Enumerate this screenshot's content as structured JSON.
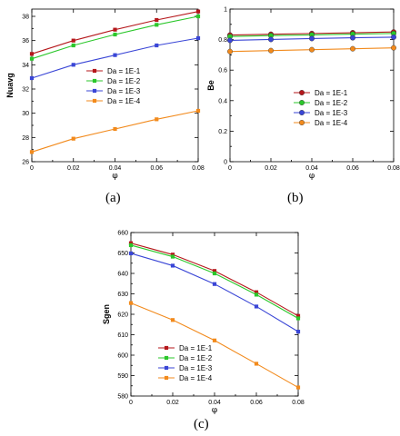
{
  "captions": {
    "a": "(a)",
    "b": "(b)",
    "c": "(c)"
  },
  "chart_data": [
    {
      "id": "a",
      "type": "line",
      "xlabel": "φ",
      "ylabel": "Nuavg",
      "xlim": [
        0,
        0.08
      ],
      "ylim": [
        26,
        38.6
      ],
      "xticks": [
        "0",
        "0.02",
        "0.04",
        "0.06",
        "0.08"
      ],
      "yticks": [
        26,
        28,
        30,
        32,
        34,
        36,
        38
      ],
      "marker": "square",
      "legend_position": "middle-right",
      "grid": false,
      "x": [
        0,
        0.02,
        0.04,
        0.06,
        0.08
      ],
      "series": [
        {
          "name": "Da = 1E-1",
          "color": "#b5171b",
          "values": [
            34.9,
            36.0,
            36.9,
            37.7,
            38.4
          ]
        },
        {
          "name": "Da = 1E-2",
          "color": "#2bc72b",
          "values": [
            34.5,
            35.6,
            36.5,
            37.3,
            38.0
          ]
        },
        {
          "name": "Da = 1E-3",
          "color": "#3a46d6",
          "values": [
            32.9,
            34.0,
            34.8,
            35.6,
            36.2
          ]
        },
        {
          "name": "Da = 1E-4",
          "color": "#f28a1c",
          "values": [
            26.8,
            27.9,
            28.7,
            29.5,
            30.2
          ]
        }
      ]
    },
    {
      "id": "b",
      "type": "line",
      "xlabel": "φ",
      "ylabel": "Be",
      "xlim": [
        0,
        0.08
      ],
      "ylim": [
        0,
        1
      ],
      "xticks": [
        "0",
        "0.02",
        "0.04",
        "0.06",
        "0.08"
      ],
      "yticks": [
        "0",
        "0.2",
        "0.4",
        "0.6",
        "0.8",
        "1"
      ],
      "marker": "circle",
      "legend_position": "lower-right",
      "grid": false,
      "x": [
        0,
        0.02,
        0.04,
        0.06,
        0.08
      ],
      "series": [
        {
          "name": "Da = 1E-1",
          "color": "#b5171b",
          "values": [
            0.83,
            0.835,
            0.84,
            0.845,
            0.85
          ]
        },
        {
          "name": "Da = 1E-2",
          "color": "#2bc72b",
          "values": [
            0.82,
            0.826,
            0.831,
            0.836,
            0.84
          ]
        },
        {
          "name": "Da = 1E-3",
          "color": "#3a46d6",
          "values": [
            0.795,
            0.801,
            0.807,
            0.812,
            0.816
          ]
        },
        {
          "name": "Da = 1E-4",
          "color": "#f28a1c",
          "values": [
            0.722,
            0.728,
            0.734,
            0.74,
            0.746
          ]
        }
      ]
    },
    {
      "id": "c",
      "type": "line",
      "xlabel": "φ",
      "ylabel": "Sgen",
      "xlim": [
        0,
        0.08
      ],
      "ylim": [
        580,
        660
      ],
      "xticks": [
        "0",
        "0.02",
        "0.04",
        "0.06",
        "0.08"
      ],
      "yticks": [
        580,
        590,
        600,
        610,
        620,
        630,
        640,
        650,
        660
      ],
      "marker": "square",
      "legend_position": "lower-center",
      "grid": false,
      "x": [
        0,
        0.02,
        0.04,
        0.06,
        0.08
      ],
      "series": [
        {
          "name": "Da = 1E-1",
          "color": "#b5171b",
          "values": [
            654.8,
            649.2,
            641.2,
            630.8,
            619.2
          ]
        },
        {
          "name": "Da = 1E-2",
          "color": "#2bc72b",
          "values": [
            653.8,
            648.2,
            640.0,
            629.6,
            618.0
          ]
        },
        {
          "name": "Da = 1E-3",
          "color": "#3a46d6",
          "values": [
            649.8,
            643.8,
            634.8,
            623.8,
            611.5
          ]
        },
        {
          "name": "Da = 1E-4",
          "color": "#f28a1c",
          "values": [
            625.5,
            617.2,
            607.2,
            595.8,
            584.2
          ]
        }
      ]
    }
  ]
}
